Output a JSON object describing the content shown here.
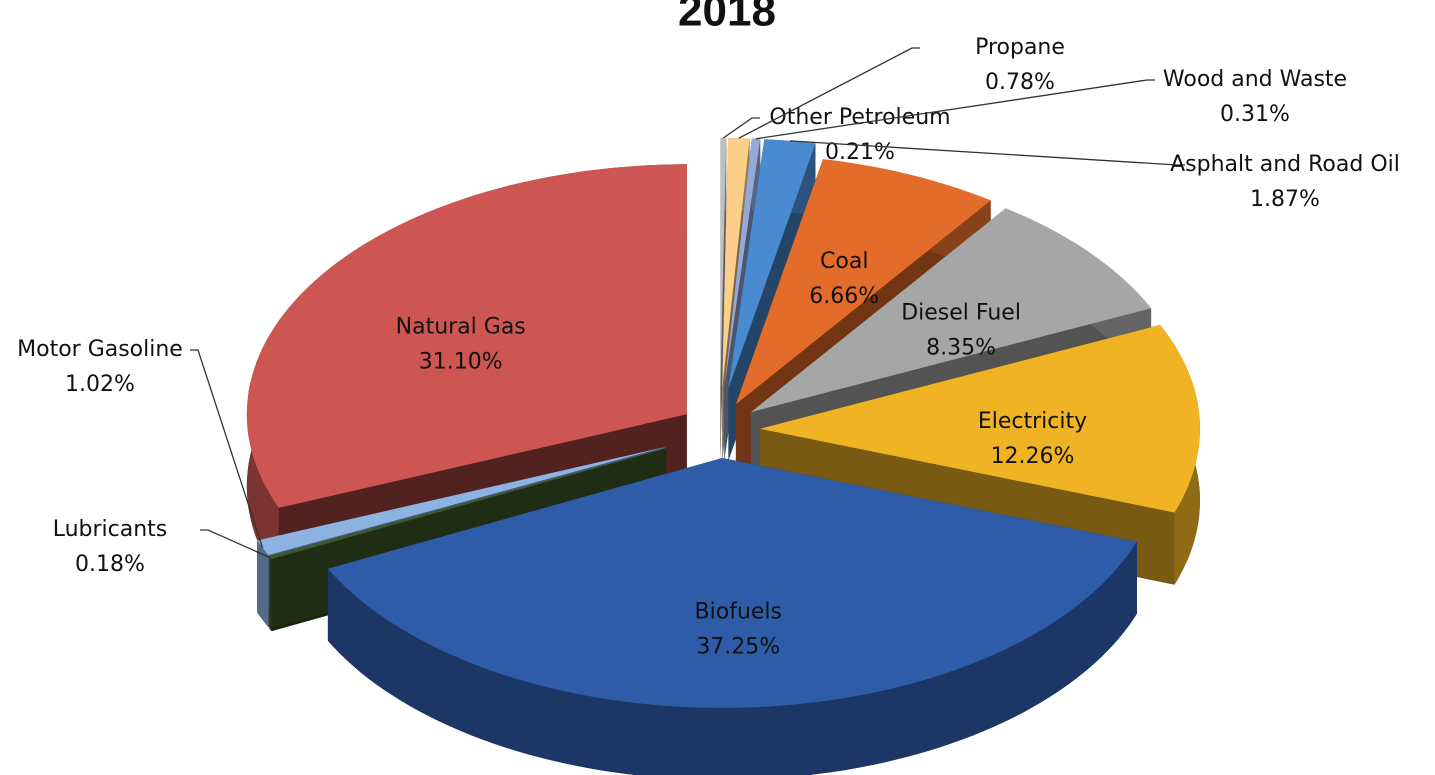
{
  "chart_data": {
    "type": "pie3d",
    "title": "2018",
    "categories": [
      "Other Petroleum",
      "Propane",
      "Wood and Waste",
      "Asphalt and Road Oil",
      "Coal",
      "Diesel Fuel",
      "Electricity",
      "Biofuels",
      "Lubricants",
      "Motor Gasoline",
      "Natural Gas"
    ],
    "values": [
      0.21,
      0.78,
      0.31,
      1.87,
      6.66,
      8.35,
      12.26,
      37.25,
      0.18,
      1.02,
      31.1
    ],
    "value_labels": [
      "0.21%",
      "0.78%",
      "0.31%",
      "1.87%",
      "6.66%",
      "8.35%",
      "12.26%",
      "37.25%",
      "0.18%",
      "1.02%",
      "31.10%"
    ],
    "colors": [
      "#bfbfbf",
      "#fcd088",
      "#95a9d9",
      "#4a8ad0",
      "#e46c2a",
      "#a6a6a6",
      "#f0b323",
      "#2f5ca8",
      "#3b5a26",
      "#8db3e2",
      "#cd5652"
    ]
  }
}
